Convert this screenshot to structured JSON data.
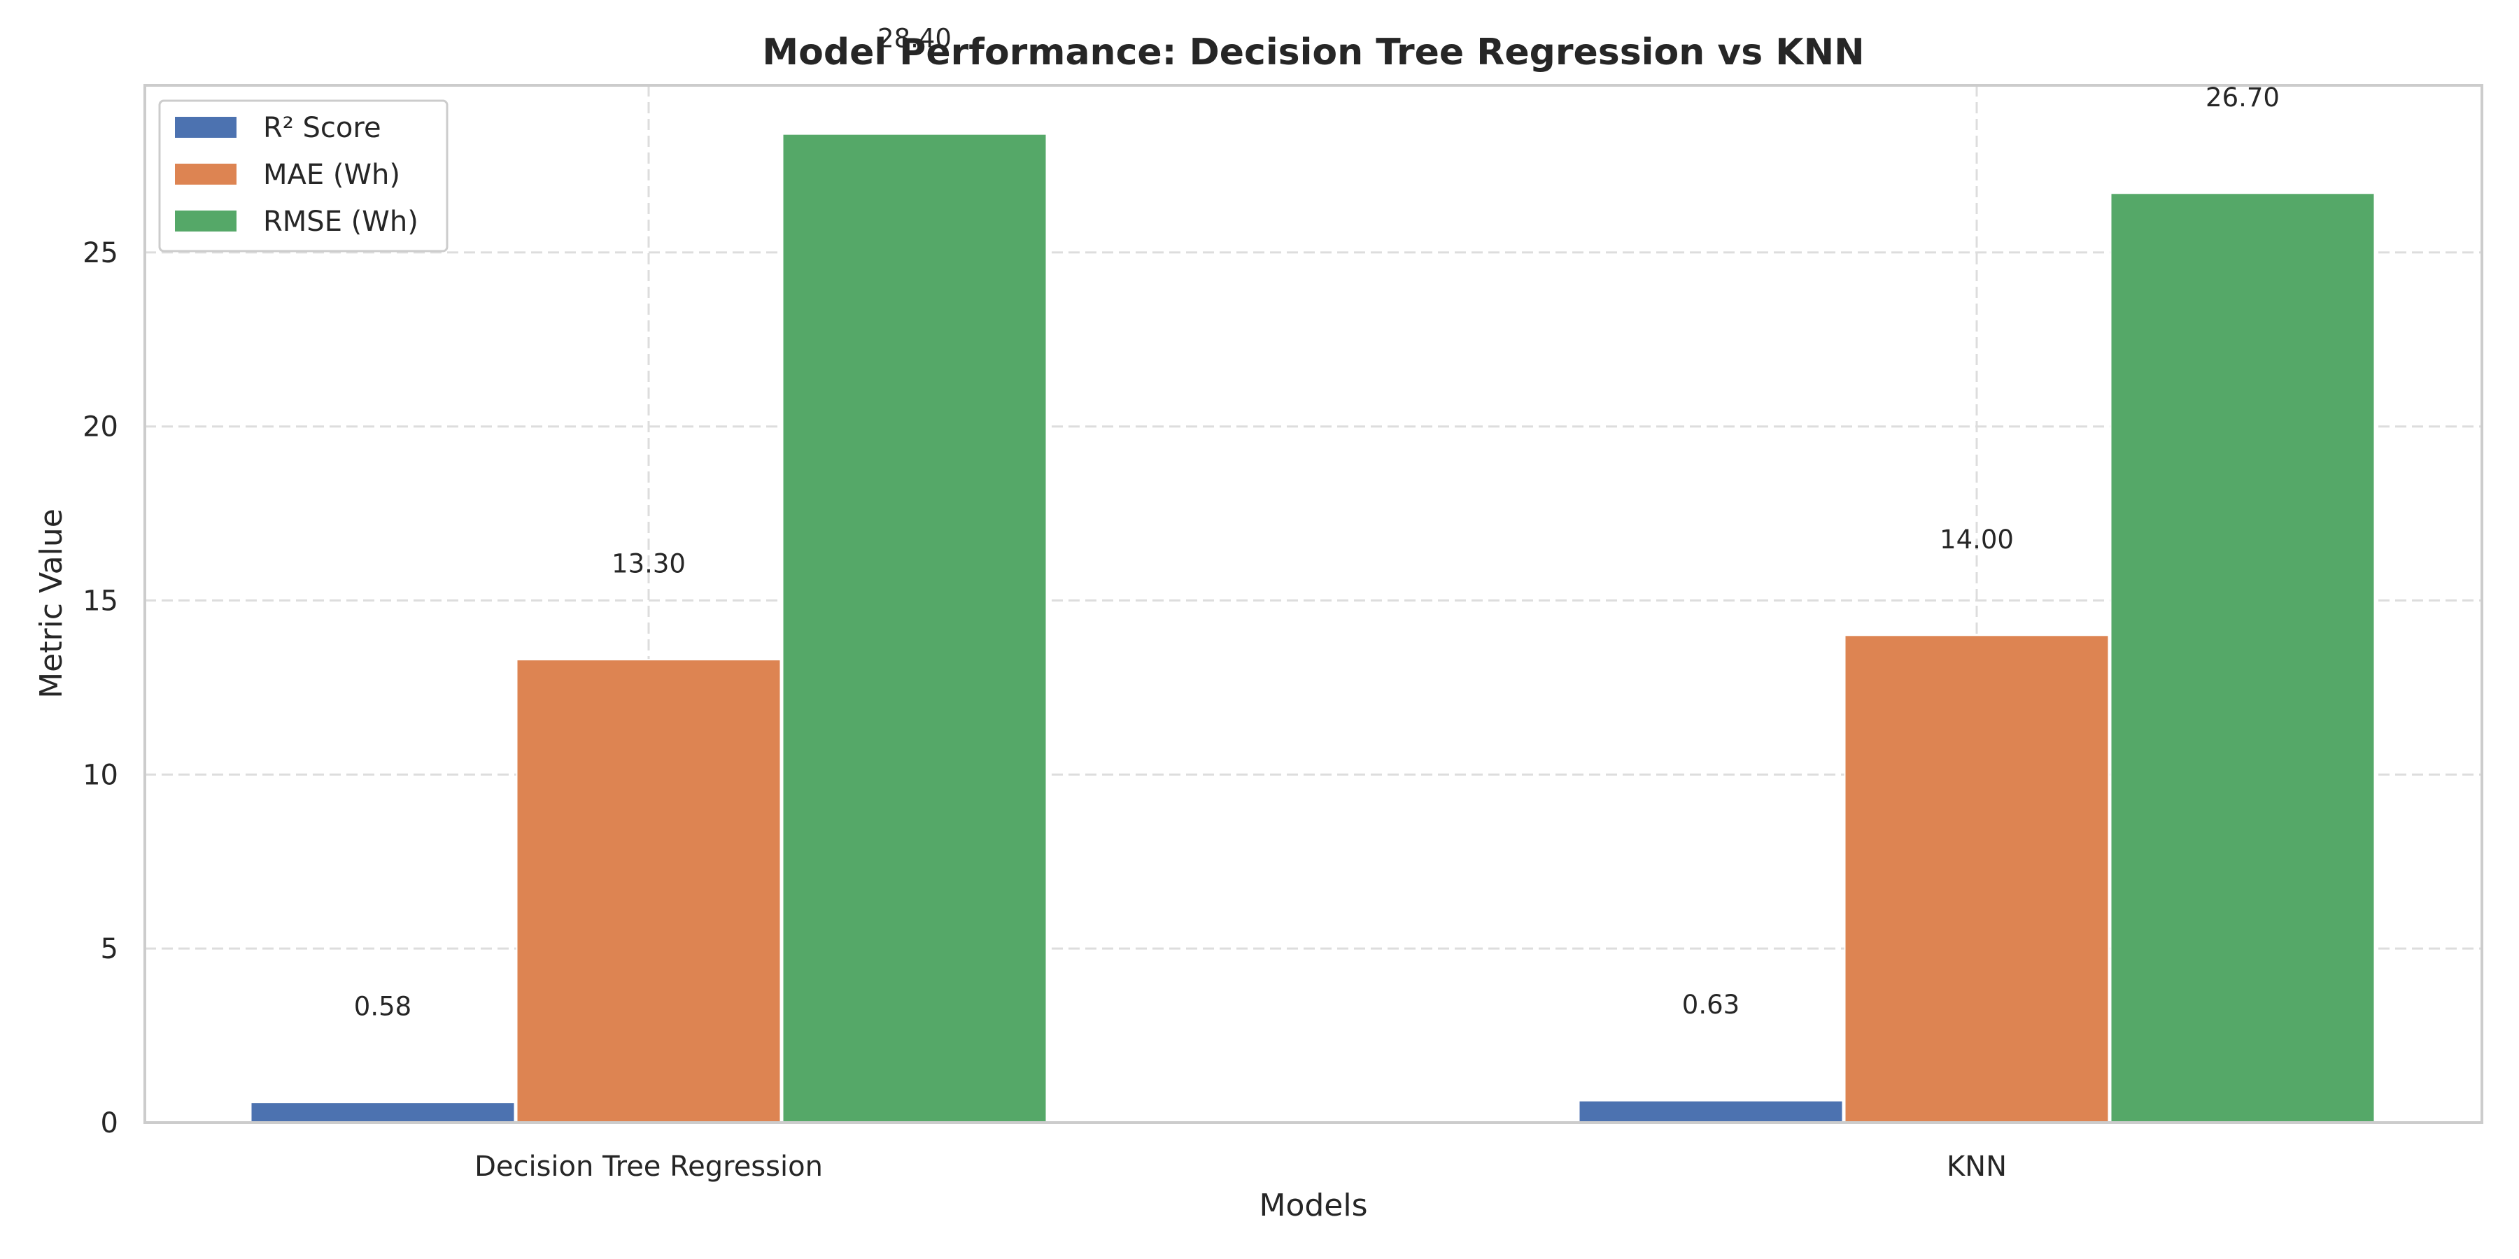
{
  "chart_data": {
    "type": "bar",
    "title": "Model Performance: Decision Tree Regression vs KNN",
    "xlabel": "Models",
    "ylabel": "Metric Value",
    "categories": [
      "Decision Tree Regression",
      "KNN"
    ],
    "series": [
      {
        "name": "R² Score",
        "values": [
          0.58,
          0.63
        ],
        "color": "#4C72B0",
        "labels": [
          "0.58",
          "0.63"
        ]
      },
      {
        "name": "MAE (Wh)",
        "values": [
          13.3,
          14.0
        ],
        "color": "#DD8452",
        "labels": [
          "13.30",
          "14.00"
        ]
      },
      {
        "name": "RMSE (Wh)",
        "values": [
          28.4,
          26.7
        ],
        "color": "#55A868",
        "labels": [
          "28.40",
          "26.70"
        ]
      }
    ],
    "ylim": [
      0,
      29.8
    ],
    "yticks": [
      0,
      5,
      10,
      15,
      20,
      25
    ],
    "grid": true,
    "legend": "top-left"
  }
}
